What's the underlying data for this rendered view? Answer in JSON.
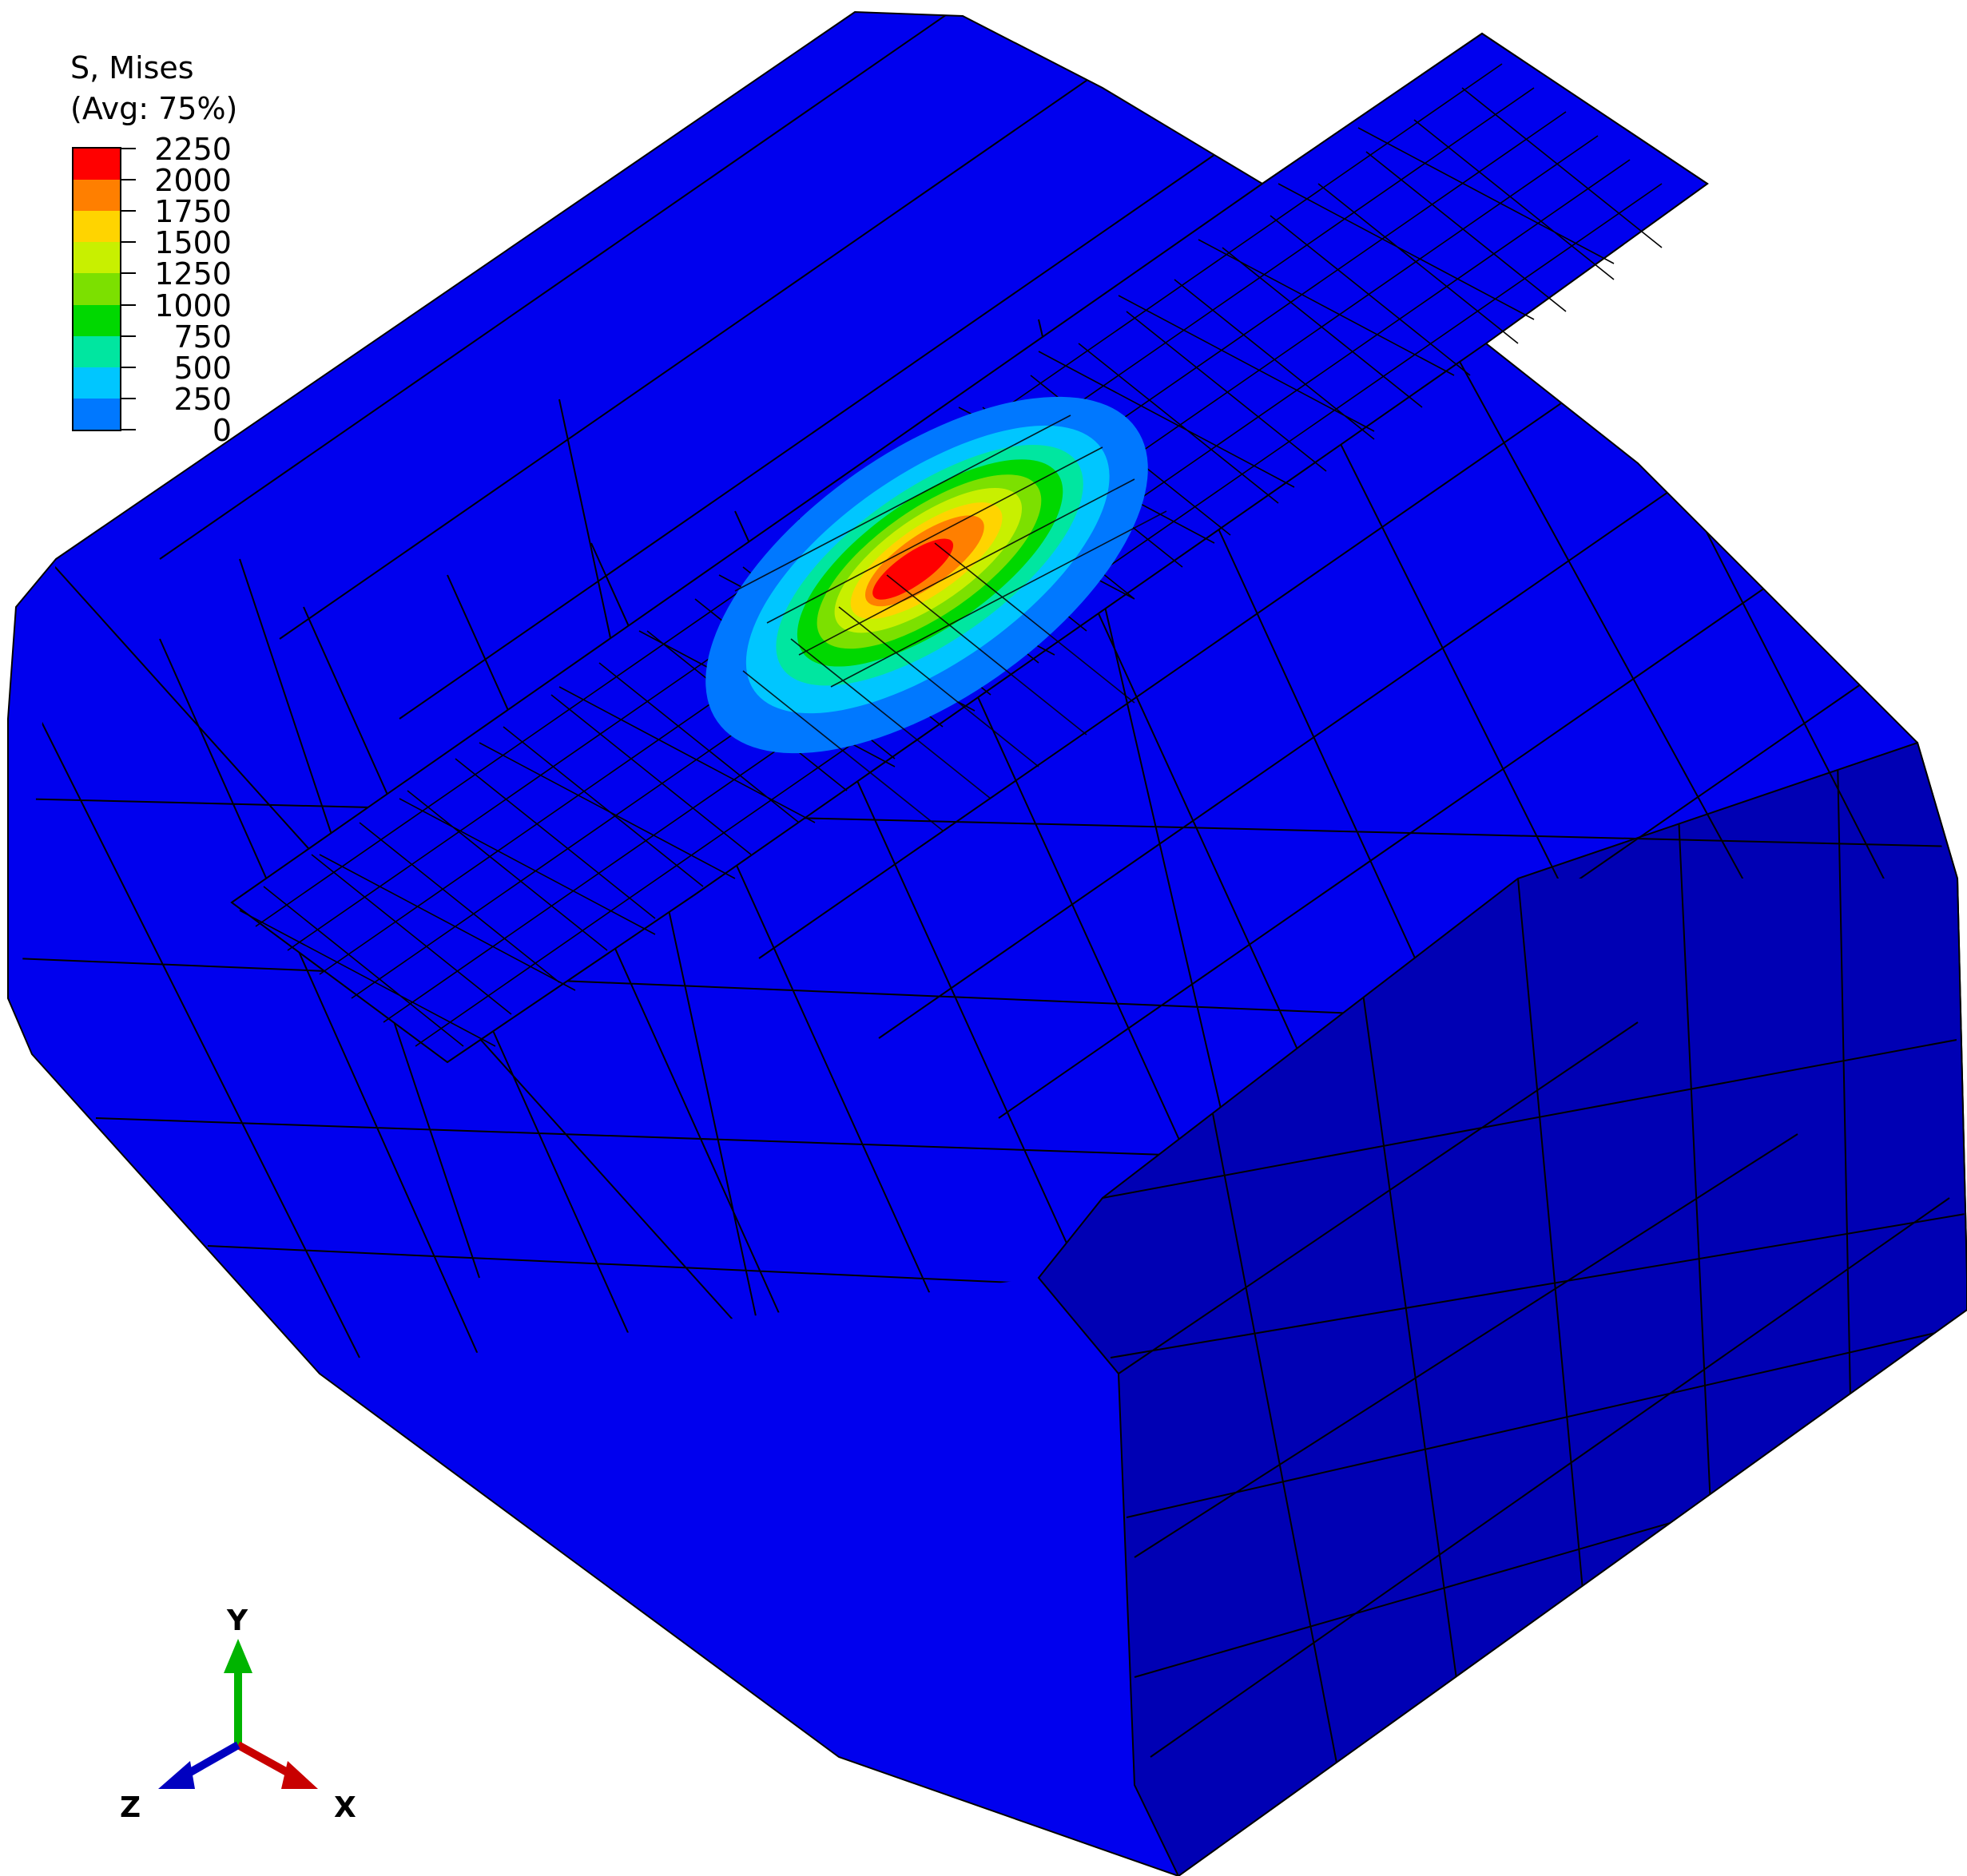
{
  "legend": {
    "title_line1": "S, Mises",
    "title_line2": "(Avg: 75%)",
    "levels": [
      {
        "label": "2250",
        "color": "#ff0000"
      },
      {
        "label": "2000",
        "color": "#ff7f00"
      },
      {
        "label": "1750",
        "color": "#ffd400"
      },
      {
        "label": "1500",
        "color": "#c8f000"
      },
      {
        "label": "1250",
        "color": "#7ce000"
      },
      {
        "label": "1000",
        "color": "#00d800"
      },
      {
        "label": "750",
        "color": "#00e6a0"
      },
      {
        "label": "500",
        "color": "#00c6ff"
      },
      {
        "label": "250",
        "color": "#0078ff"
      },
      {
        "label": "0",
        "color": "#0000ff"
      }
    ]
  },
  "axes": {
    "y_label": "Y",
    "z_label": "Z",
    "x_label": "X"
  },
  "colors": {
    "model_face": "#0000ee",
    "model_side": "#0000b4",
    "mesh_line": "#000000"
  }
}
